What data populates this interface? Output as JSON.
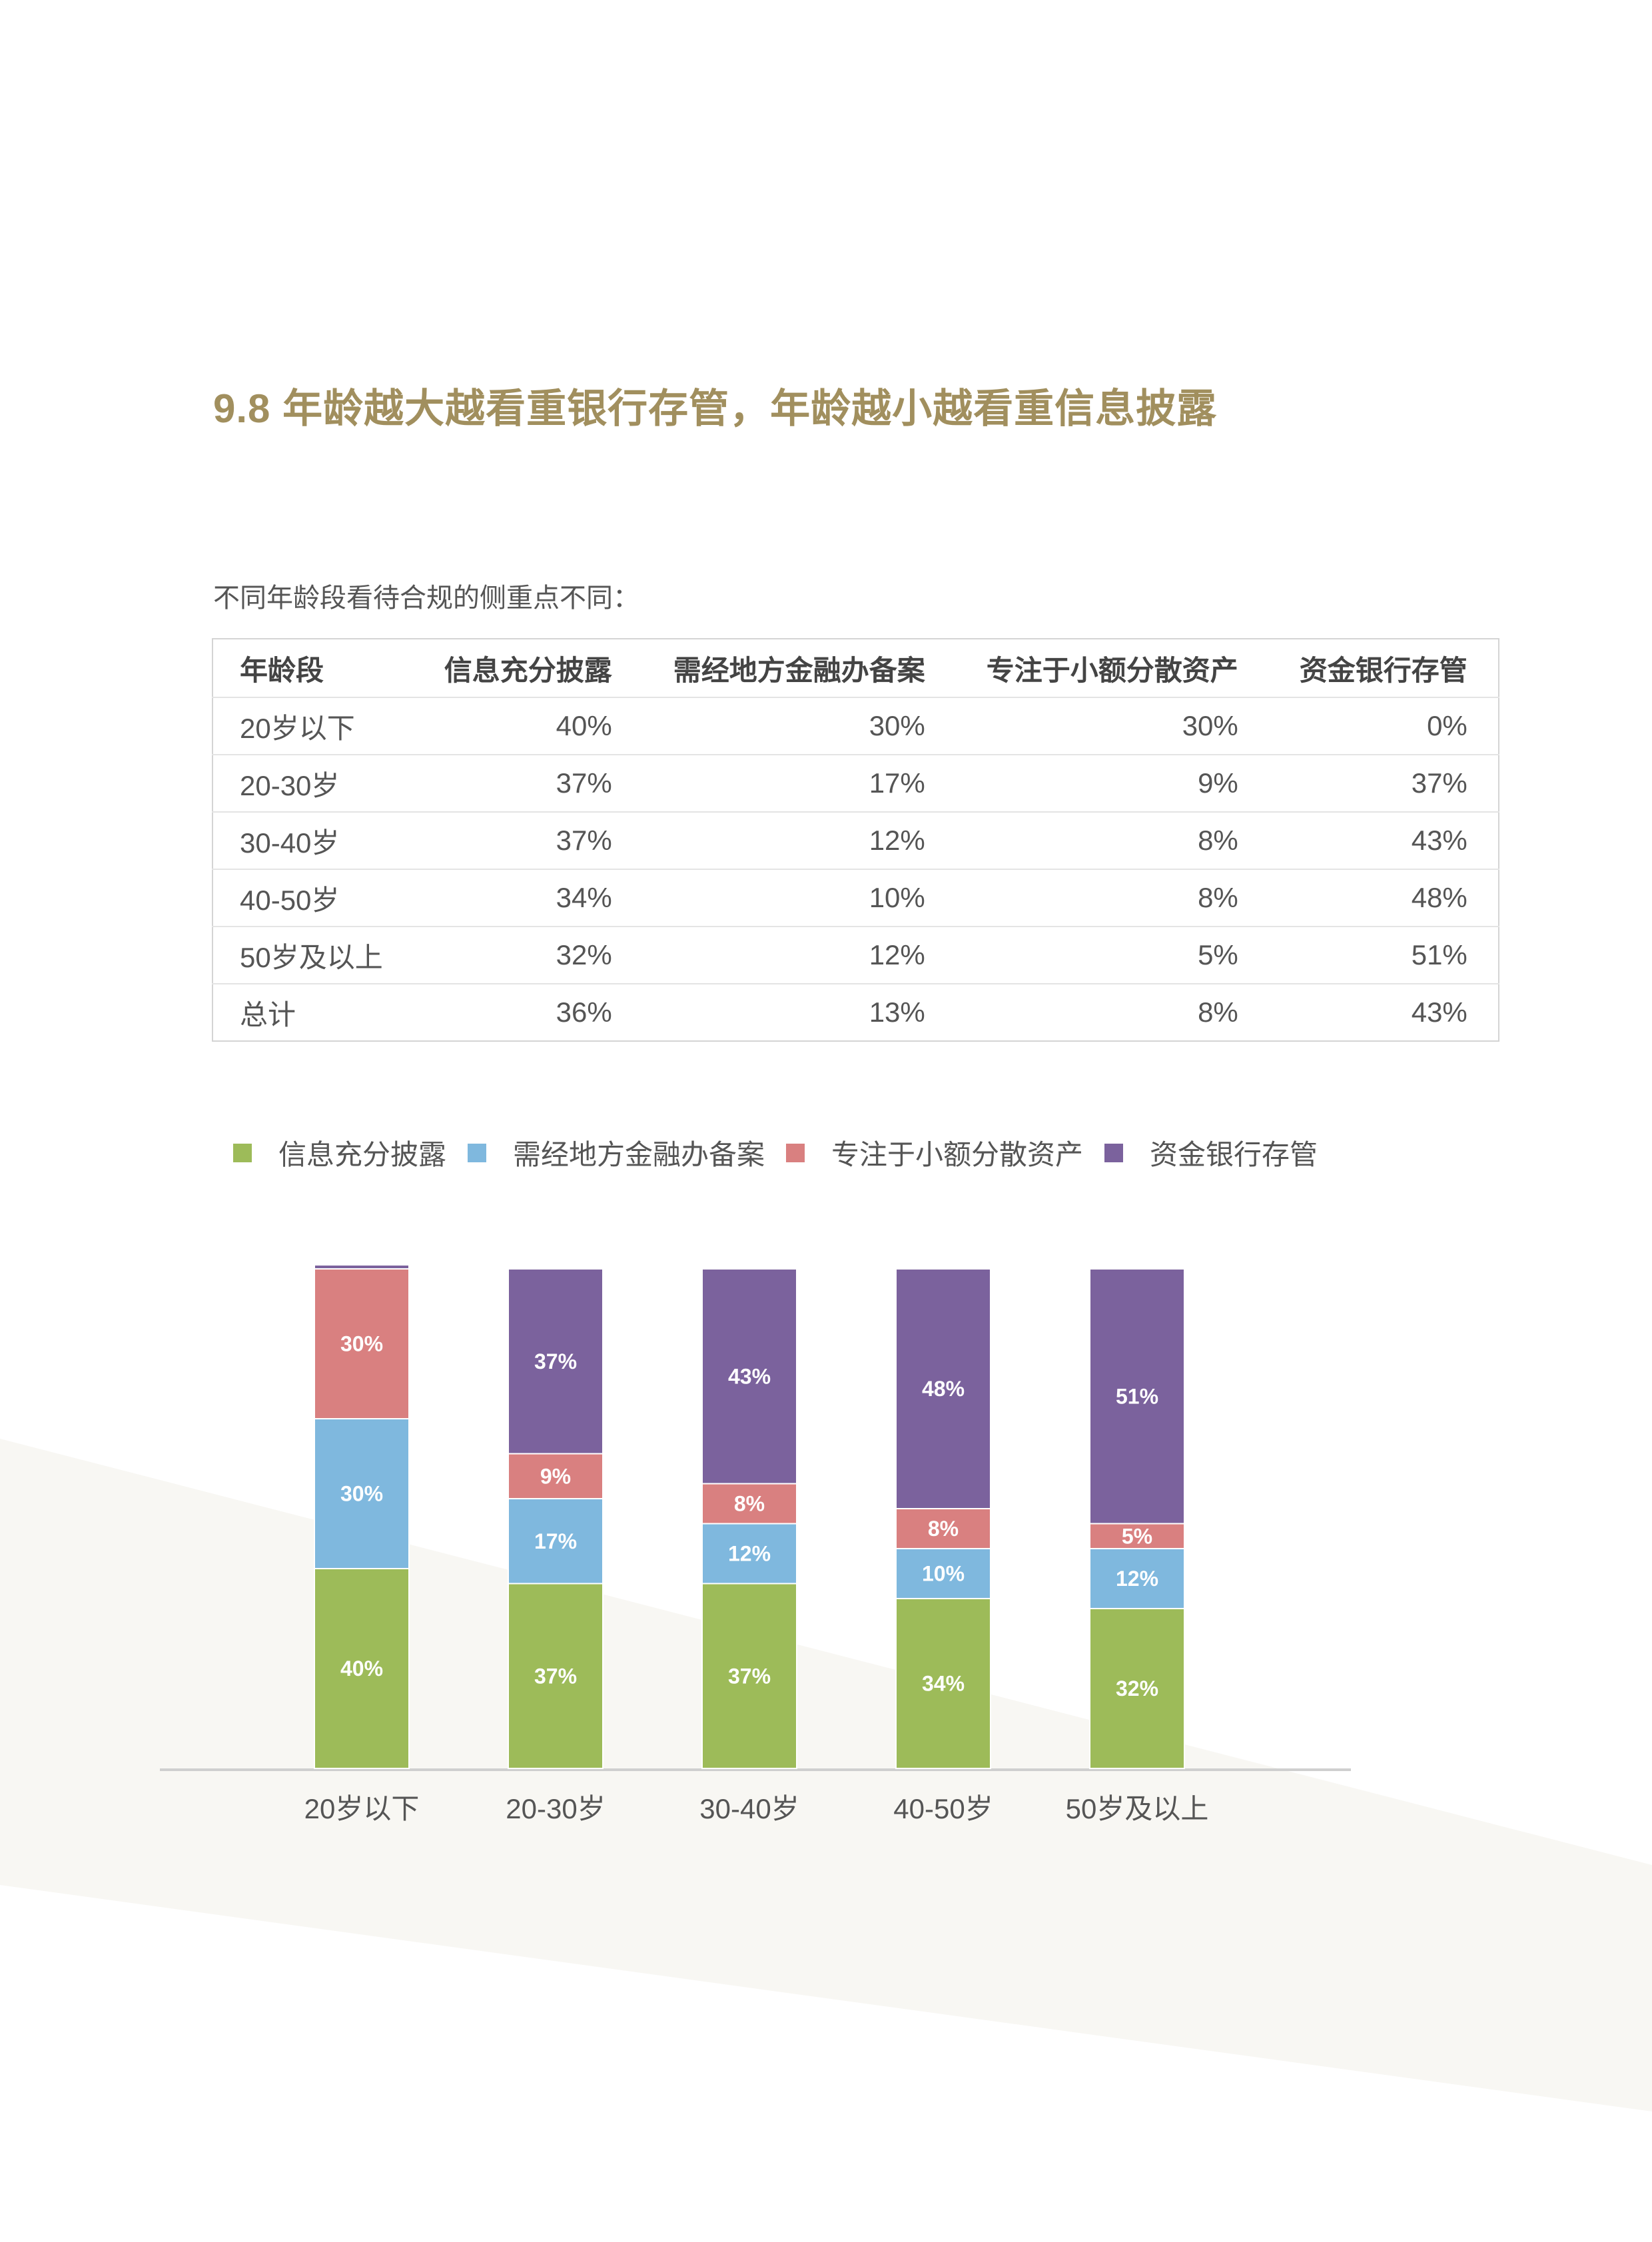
{
  "title": "9.8 年龄越大越看重银行存管，年龄越小越看重信息披露",
  "table": {
    "caption": "不同年龄段看待合规的侧重点不同：",
    "headers": [
      "年龄段",
      "信息充分披露",
      "需经地方金融办备案",
      "专注于小额分散资产",
      "资金银行存管"
    ],
    "rows": [
      [
        "20岁以下",
        "40%",
        "30%",
        "30%",
        "0%"
      ],
      [
        "20-30岁",
        "37%",
        "17%",
        "9%",
        "37%"
      ],
      [
        "30-40岁",
        "37%",
        "12%",
        "8%",
        "43%"
      ],
      [
        "40-50岁",
        "34%",
        "10%",
        "8%",
        "48%"
      ],
      [
        "50岁及以上",
        "32%",
        "12%",
        "5%",
        "51%"
      ],
      [
        "总计",
        "36%",
        "13%",
        "8%",
        "43%"
      ]
    ]
  },
  "chart_data": {
    "type": "bar",
    "stacked": true,
    "categories": [
      "20岁以下",
      "20-30岁",
      "30-40岁",
      "40-50岁",
      "50岁及以上"
    ],
    "series": [
      {
        "name": "信息充分披露",
        "color": "#9dbb59",
        "values": [
          40,
          37,
          37,
          34,
          32
        ]
      },
      {
        "name": "需经地方金融办备案",
        "color": "#7fb8de",
        "values": [
          30,
          17,
          12,
          10,
          12
        ]
      },
      {
        "name": "专注于小额分散资产",
        "color": "#d98080",
        "values": [
          30,
          9,
          8,
          8,
          5
        ]
      },
      {
        "name": "资金银行存管",
        "color": "#7b629d",
        "values": [
          0,
          37,
          43,
          48,
          51
        ]
      }
    ],
    "data_labels": [
      [
        "40%",
        "37%",
        "37%",
        "34%",
        "32%"
      ],
      [
        "30%",
        "17%",
        "12%",
        "10%",
        "12%"
      ],
      [
        "30%",
        "9%",
        "8%",
        "8%",
        "5%"
      ],
      [
        "",
        "37%",
        "43%",
        "48%",
        "51%"
      ]
    ],
    "ylim": [
      0,
      100
    ],
    "grid": false,
    "legend": "top"
  }
}
